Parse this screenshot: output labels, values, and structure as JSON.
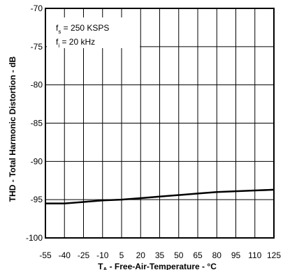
{
  "chart_data": {
    "type": "line",
    "xlabel_main": "T",
    "xlabel_sub": "A",
    "xlabel_rest": " - Free-Air-Temperature - °C",
    "ylabel": "THD - Total Harmonic Distortion - dB",
    "xlim": [
      -55,
      125
    ],
    "ylim": [
      -100,
      -70
    ],
    "x_ticks": [
      -55,
      -40,
      -25,
      -10,
      5,
      20,
      35,
      50,
      65,
      80,
      95,
      110,
      125
    ],
    "y_ticks": [
      -70,
      -75,
      -80,
      -85,
      -90,
      -95,
      -100
    ],
    "grid": true,
    "annotations": {
      "line1": {
        "main": "f",
        "sub": "s",
        "rest": " = 250 KSPS"
      },
      "line2": {
        "main": "f",
        "sub": "i",
        "rest": " = 20 kHz"
      }
    },
    "series": [
      {
        "x": [
          -55,
          -40,
          -25,
          -10,
          5,
          20,
          35,
          50,
          65,
          80,
          95,
          110,
          125
        ],
        "y": [
          -95.5,
          -95.5,
          -95.3,
          -95.1,
          -95.0,
          -94.8,
          -94.6,
          -94.4,
          -94.2,
          -94.0,
          -93.9,
          -93.8,
          -93.7
        ]
      }
    ]
  }
}
